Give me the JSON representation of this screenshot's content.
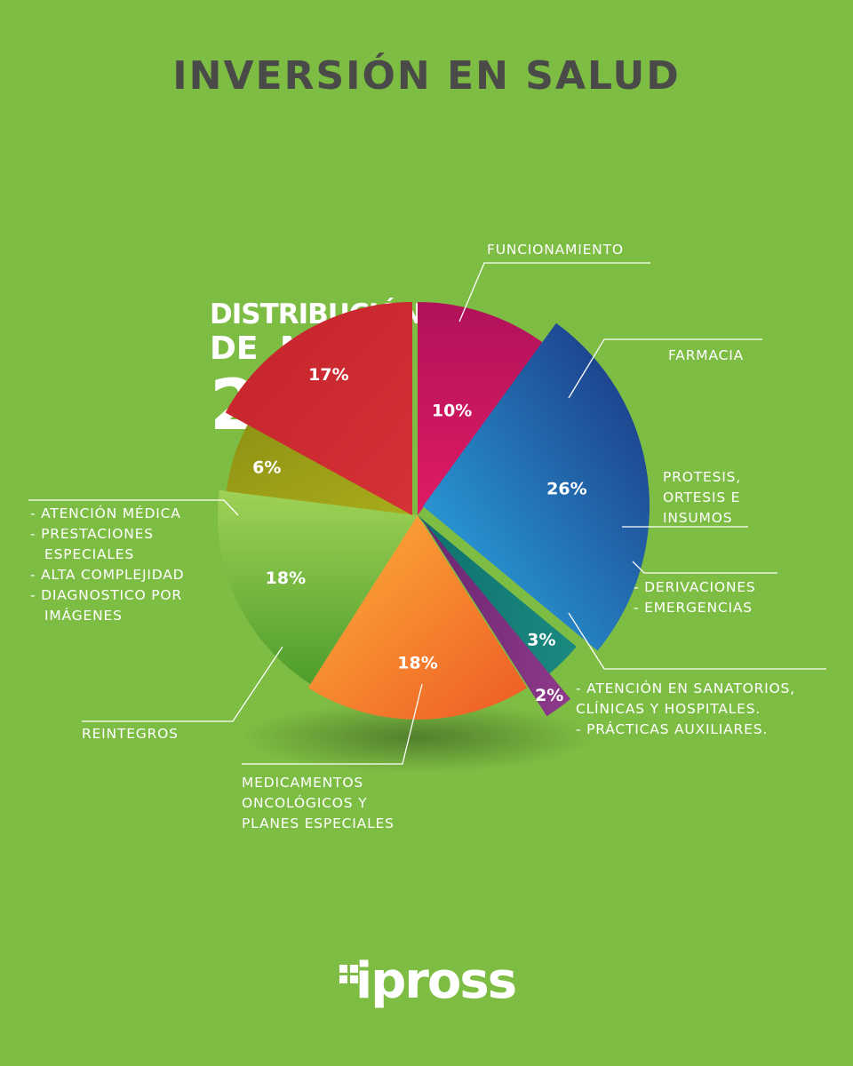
{
  "header": {
    "title": "INVERSIÓN EN SALUD"
  },
  "subtitle": {
    "line1": "DISTRIBUCIÓN",
    "line2": "DE MAYO",
    "line3": "2024"
  },
  "chart_data": {
    "type": "pie",
    "title": "INVERSIÓN EN SALUD",
    "categories": [
      "FUNCIONAMIENTO",
      "FARMACIA",
      "PROTESIS, ORTESIS E INSUMOS",
      "DERIVACIONES / EMERGENCIAS",
      "ATENCIÓN EN SANATORIOS, CLÍNICAS Y HOSPITALES / PRÁCTICAS AUXILIARES",
      "MEDICAMENTOS ONCOLÓGICOS Y PLANES ESPECIALES",
      "REINTEGROS",
      "ATENCIÓN MÉDICA / PRESTACIONES ESPECIALES / ALTA COMPLEJIDAD / DIAGNOSTICO POR IMÁGENES"
    ],
    "values": [
      10,
      26,
      3,
      2,
      18,
      18,
      6,
      17
    ],
    "value_labels": [
      "10%",
      "26%",
      "3%",
      "2%",
      "18%",
      "18%",
      "6%",
      "17%"
    ],
    "colors": [
      "#c8155e",
      "#2a6fb8",
      "#147d74",
      "#7a2d7a",
      "#f07a2a",
      "#6fb535",
      "#9aa012",
      "#c8262e"
    ]
  },
  "labels": {
    "funcionamiento": [
      "FUNCIONAMIENTO"
    ],
    "farmacia": [
      "FARMACIA"
    ],
    "protesis": [
      "PROTESIS,",
      "ORTESIS E",
      "INSUMOS"
    ],
    "derivaciones": [
      "- DERIVACIONES",
      "- EMERGENCIAS"
    ],
    "atencion_sanatorios": [
      "- ATENCIÓN EN SANATORIOS,",
      "CLÍNICAS Y HOSPITALES.",
      "- PRÁCTICAS AUXILIARES."
    ],
    "medicamentos": [
      "MEDICAMENTOS",
      "ONCOLÓGICOS Y",
      "PLANES ESPECIALES"
    ],
    "reintegros": [
      "REINTEGROS"
    ],
    "atencion_medica": [
      "- ATENCIÓN MÉDICA",
      "- PRESTACIONES",
      "ESPECIALES",
      "- ALTA COMPLEJIDAD",
      "- DIAGNOSTICO POR",
      "IMÁGENES"
    ]
  },
  "logo": {
    "text": "ipross"
  }
}
